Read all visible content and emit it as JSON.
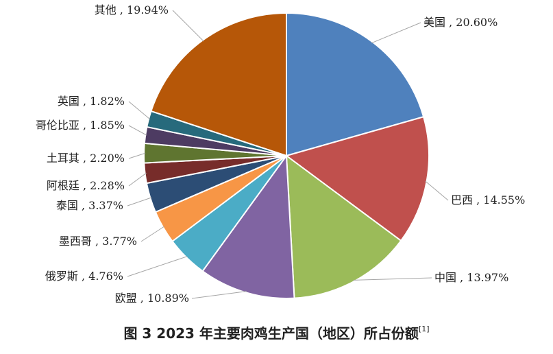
{
  "chart_data": {
    "type": "pie",
    "start": "top, clockwise",
    "slices": [
      {
        "name": "美国",
        "value": 20.6,
        "label": "美国 , 20.60%",
        "color": "#4F81BD"
      },
      {
        "name": "巴西",
        "value": 14.55,
        "label": "巴西 , 14.55%",
        "color": "#C0504D"
      },
      {
        "name": "中国",
        "value": 13.97,
        "label": "中国 , 13.97%",
        "color": "#9BBB59"
      },
      {
        "name": "欧盟",
        "value": 10.89,
        "label": "欧盟 , 10.89%",
        "color": "#8064A2"
      },
      {
        "name": "俄罗斯",
        "value": 4.76,
        "label": "俄罗斯 , 4.76%",
        "color": "#4BACC6"
      },
      {
        "name": "墨西哥",
        "value": 3.77,
        "label": "墨西哥 , 3.77%",
        "color": "#F79646"
      },
      {
        "name": "泰国",
        "value": 3.37,
        "label": "泰国 , 3.37%",
        "color": "#2C4D75"
      },
      {
        "name": "阿根廷",
        "value": 2.28,
        "label": "阿根廷 , 2.28%",
        "color": "#772C2A"
      },
      {
        "name": "土耳其",
        "value": 2.2,
        "label": "土耳其 , 2.20%",
        "color": "#5F7530"
      },
      {
        "name": "哥伦比亚",
        "value": 1.85,
        "label": "哥伦比亚 , 1.85%",
        "color": "#4D3B62"
      },
      {
        "name": "英国",
        "value": 1.82,
        "label": "英国 , 1.82%",
        "color": "#276A7C"
      },
      {
        "name": "其他",
        "value": 19.94,
        "label": "其他 , 19.94%",
        "color": "#B65708"
      }
    ]
  },
  "caption": {
    "text": "图 3  2023 年主要肉鸡生产国（地区）所占份额",
    "ref": "[1]"
  }
}
